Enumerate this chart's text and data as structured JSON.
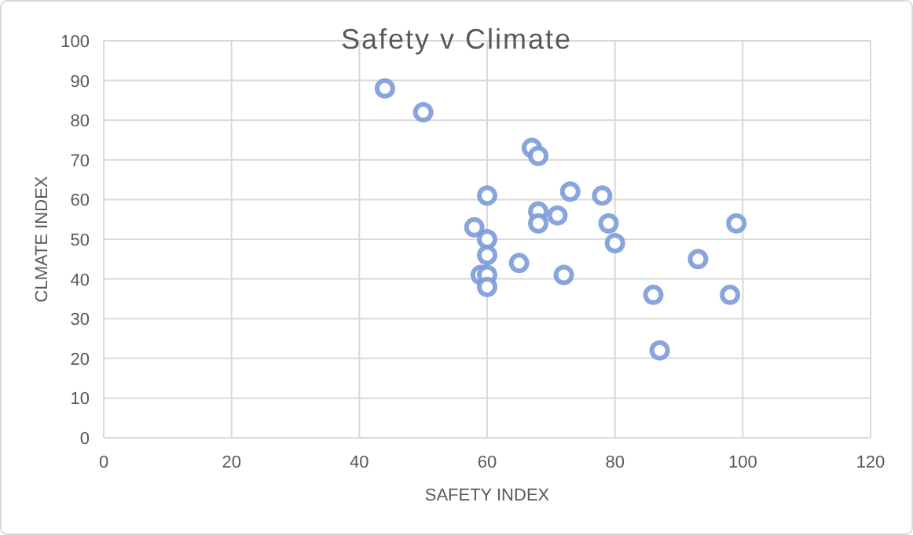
{
  "chart_data": {
    "type": "scatter",
    "title": "Safety v Climate",
    "xlabel": "SAFETY INDEX",
    "ylabel": "CLMATE INDEX",
    "x": [
      44,
      50,
      60,
      58,
      60,
      60,
      59,
      60,
      60,
      67,
      68,
      65,
      68,
      68,
      71,
      73,
      72,
      78,
      79,
      80,
      86,
      87,
      93,
      98,
      99
    ],
    "series": [
      {
        "color": "#7b9bda",
        "values": [
          88,
          82,
          61,
          53,
          50,
          46,
          41,
          41,
          38,
          73,
          71,
          44,
          57,
          54,
          56,
          62,
          41,
          61,
          54,
          49,
          36,
          22,
          45,
          36,
          54
        ]
      }
    ],
    "xlim": [
      0,
      120
    ],
    "xticks": [
      0,
      20,
      40,
      60,
      80,
      100,
      120
    ],
    "ylim": [
      0,
      100
    ],
    "yticks": [
      0,
      10,
      20,
      30,
      40,
      50,
      60,
      70,
      80,
      90,
      100
    ],
    "grid": true,
    "marker": "circle"
  }
}
